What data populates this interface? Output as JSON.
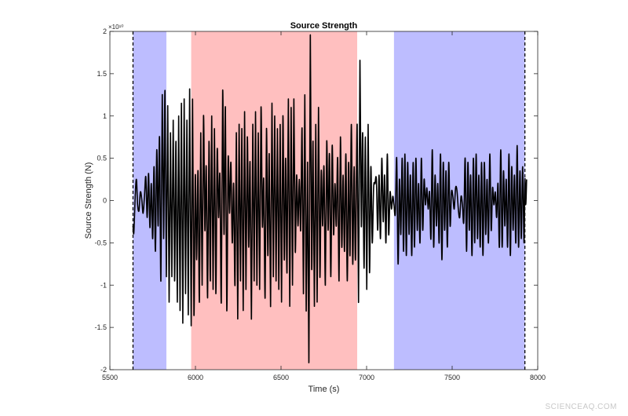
{
  "chart_data": {
    "type": "line",
    "title": "Source Strength",
    "xlabel": "Time (s)",
    "ylabel": "Source Strength (N)",
    "y_exponent_label": "×10¹⁰",
    "xlim": [
      5500,
      8000
    ],
    "ylim": [
      -2.0,
      2.0
    ],
    "y_scale_factor": 10000000000,
    "x_ticks": [
      5500,
      6000,
      6500,
      7000,
      7500,
      8000
    ],
    "x_tick_labels": [
      "5500",
      "6000",
      "6500",
      "7000",
      "7500",
      "8000"
    ],
    "y_ticks": [
      -2,
      -1.5,
      -1,
      -0.5,
      0,
      0.5,
      1,
      1.5,
      2
    ],
    "y_tick_labels": [
      "-2",
      "-1.5",
      "-1",
      "-0.5",
      "0",
      "0.5",
      "1",
      "1.5",
      "2"
    ],
    "grid": false,
    "regions": [
      {
        "x": [
          5635,
          5830
        ],
        "color": "#bdbdff"
      },
      {
        "x": [
          5975,
          6945
        ],
        "color": "#ffbfbf"
      },
      {
        "x": [
          7160,
          7925
        ],
        "color": "#bdbdff"
      }
    ],
    "vlines": [
      5635,
      7925
    ],
    "series": [
      {
        "color": "#000000",
        "points": [
          [
            5635,
            -0.3
          ],
          [
            5640,
            -0.38
          ],
          [
            5648,
            0.05
          ],
          [
            5655,
            0.25
          ],
          [
            5662,
            -0.05
          ],
          [
            5670,
            -0.12
          ],
          [
            5678,
            0.1
          ],
          [
            5686,
            0.02
          ],
          [
            5694,
            -0.15
          ],
          [
            5702,
            0.05
          ],
          [
            5710,
            0.28
          ],
          [
            5718,
            -0.2
          ],
          [
            5726,
            0.32
          ],
          [
            5734,
            -0.32
          ],
          [
            5742,
            0.2
          ],
          [
            5750,
            -0.45
          ],
          [
            5758,
            0.4
          ],
          [
            5766,
            -0.6
          ],
          [
            5774,
            0.6
          ],
          [
            5782,
            -0.3
          ],
          [
            5790,
            0.75
          ],
          [
            5798,
            -0.95
          ],
          [
            5806,
            1.25
          ],
          [
            5814,
            -0.45
          ],
          [
            5822,
            1.3
          ],
          [
            5830,
            -0.9
          ],
          [
            5838,
            1.12
          ],
          [
            5846,
            -1.2
          ],
          [
            5854,
            0.8
          ],
          [
            5862,
            -0.9
          ],
          [
            5870,
            0.95
          ],
          [
            5878,
            -0.95
          ],
          [
            5886,
            0.7
          ],
          [
            5894,
            -1.2
          ],
          [
            5902,
            1.0
          ],
          [
            5910,
            -1.3
          ],
          [
            5918,
            1.15
          ],
          [
            5926,
            -1.45
          ],
          [
            5934,
            1.2
          ],
          [
            5942,
            -1.1
          ],
          [
            5950,
            0.95
          ],
          [
            5958,
            -1.35
          ],
          [
            5966,
            1.32
          ],
          [
            5975,
            -1.48
          ],
          [
            5983,
            1.2
          ],
          [
            5991,
            -1.35
          ],
          [
            5999,
            0.3
          ],
          [
            6007,
            -0.7
          ],
          [
            6015,
            0.35
          ],
          [
            6023,
            -1.2
          ],
          [
            6031,
            0.8
          ],
          [
            6039,
            -1.0
          ],
          [
            6047,
            1.0
          ],
          [
            6055,
            -0.35
          ],
          [
            6063,
            0.4
          ],
          [
            6071,
            -1.15
          ],
          [
            6079,
            0.7
          ],
          [
            6087,
            -0.95
          ],
          [
            6095,
            1.0
          ],
          [
            6103,
            -1.05
          ],
          [
            6111,
            0.85
          ],
          [
            6119,
            -1.1
          ],
          [
            6127,
            0.6
          ],
          [
            6135,
            -0.2
          ],
          [
            6143,
            0.3
          ],
          [
            6151,
            -1.2
          ],
          [
            6159,
            1.3
          ],
          [
            6167,
            -0.4
          ],
          [
            6175,
            1.1
          ],
          [
            6183,
            -1.3
          ],
          [
            6191,
            0.5
          ],
          [
            6199,
            -0.15
          ],
          [
            6207,
            0.45
          ],
          [
            6215,
            -0.5
          ],
          [
            6223,
            0.2
          ],
          [
            6231,
            -1.0
          ],
          [
            6239,
            0.8
          ],
          [
            6247,
            -1.4
          ],
          [
            6255,
            0.9
          ],
          [
            6263,
            -0.95
          ],
          [
            6271,
            0.85
          ],
          [
            6279,
            -1.3
          ],
          [
            6287,
            1.05
          ],
          [
            6295,
            -1.05
          ],
          [
            6303,
            0.75
          ],
          [
            6311,
            -0.55
          ],
          [
            6319,
            0.45
          ],
          [
            6327,
            -1.4
          ],
          [
            6335,
            0.9
          ],
          [
            6343,
            -0.95
          ],
          [
            6351,
            1.05
          ],
          [
            6359,
            -1.0
          ],
          [
            6367,
            0.8
          ],
          [
            6375,
            -1.05
          ],
          [
            6383,
            1.1
          ],
          [
            6391,
            -0.3
          ],
          [
            6399,
            0.25
          ],
          [
            6407,
            -1.15
          ],
          [
            6415,
            0.85
          ],
          [
            6423,
            -0.65
          ],
          [
            6431,
            0.55
          ],
          [
            6439,
            -1.25
          ],
          [
            6447,
            1.15
          ],
          [
            6455,
            -0.9
          ],
          [
            6463,
            1.0
          ],
          [
            6471,
            -0.95
          ],
          [
            6479,
            0.85
          ],
          [
            6487,
            -1.05
          ],
          [
            6495,
            0.9
          ],
          [
            6503,
            -1.2
          ],
          [
            6511,
            1.0
          ],
          [
            6519,
            -0.7
          ],
          [
            6527,
            0.5
          ],
          [
            6535,
            -0.85
          ],
          [
            6543,
            1.2
          ],
          [
            6551,
            -1.25
          ],
          [
            6559,
            1.1
          ],
          [
            6567,
            -1.0
          ],
          [
            6575,
            1.2
          ],
          [
            6583,
            -0.6
          ],
          [
            6591,
            0.3
          ],
          [
            6599,
            -0.3
          ],
          [
            6607,
            0.25
          ],
          [
            6615,
            -0.35
          ],
          [
            6623,
            0.85
          ],
          [
            6631,
            -1.1
          ],
          [
            6639,
            1.25
          ],
          [
            6647,
            -1.3
          ],
          [
            6655,
            0.45
          ],
          [
            6663,
            -1.9
          ],
          [
            6671,
            1.95
          ],
          [
            6679,
            -0.8
          ],
          [
            6687,
            0.7
          ],
          [
            6695,
            -1.25
          ],
          [
            6703,
            0.9
          ],
          [
            6711,
            -1.2
          ],
          [
            6719,
            1.1
          ],
          [
            6727,
            -0.9
          ],
          [
            6735,
            0.35
          ],
          [
            6743,
            -0.3
          ],
          [
            6751,
            0.4
          ],
          [
            6759,
            -1.0
          ],
          [
            6767,
            0.7
          ],
          [
            6775,
            -0.35
          ],
          [
            6783,
            0.55
          ],
          [
            6791,
            -0.9
          ],
          [
            6799,
            0.65
          ],
          [
            6807,
            -0.4
          ],
          [
            6815,
            0.2
          ],
          [
            6823,
            -0.3
          ],
          [
            6831,
            0.5
          ],
          [
            6839,
            -0.95
          ],
          [
            6847,
            0.75
          ],
          [
            6855,
            -0.55
          ],
          [
            6863,
            0.3
          ],
          [
            6871,
            -0.6
          ],
          [
            6879,
            0.55
          ],
          [
            6887,
            -0.95
          ],
          [
            6895,
            0.45
          ],
          [
            6903,
            -0.65
          ],
          [
            6911,
            0.9
          ],
          [
            6919,
            -0.75
          ],
          [
            6927,
            0.4
          ],
          [
            6935,
            -0.7
          ],
          [
            6945,
            0.9
          ],
          [
            6953,
            -1.2
          ],
          [
            6961,
            1.65
          ],
          [
            6969,
            -0.3
          ],
          [
            6977,
            0.8
          ],
          [
            6985,
            -0.8
          ],
          [
            6993,
            0.75
          ],
          [
            7001,
            -1.05
          ],
          [
            7009,
            0.9
          ],
          [
            7017,
            -0.85
          ],
          [
            7025,
            0.4
          ],
          [
            7033,
            -0.5
          ],
          [
            7041,
            0.15
          ],
          [
            7049,
            0.2
          ],
          [
            7057,
            0.25
          ],
          [
            7065,
            -0.35
          ],
          [
            7073,
            0.3
          ],
          [
            7081,
            -0.45
          ],
          [
            7089,
            0.5
          ],
          [
            7097,
            -0.25
          ],
          [
            7105,
            0.3
          ],
          [
            7113,
            -0.5
          ],
          [
            7121,
            0.55
          ],
          [
            7129,
            -0.4
          ],
          [
            7137,
            0.1
          ],
          [
            7145,
            -0.1
          ],
          [
            7153,
            0.05
          ],
          [
            7160,
            -0.05
          ],
          [
            7168,
            -0.15
          ],
          [
            7176,
            0.5
          ],
          [
            7184,
            -0.75
          ],
          [
            7192,
            0.25
          ],
          [
            7200,
            -0.4
          ],
          [
            7208,
            0.5
          ],
          [
            7216,
            -0.6
          ],
          [
            7224,
            0.55
          ],
          [
            7232,
            -0.65
          ],
          [
            7240,
            0.45
          ],
          [
            7248,
            -0.4
          ],
          [
            7256,
            0.3
          ],
          [
            7264,
            -0.65
          ],
          [
            7272,
            0.45
          ],
          [
            7280,
            -0.55
          ],
          [
            7288,
            0.5
          ],
          [
            7296,
            -0.35
          ],
          [
            7304,
            0.2
          ],
          [
            7312,
            -0.5
          ],
          [
            7320,
            0.5
          ],
          [
            7328,
            -0.35
          ],
          [
            7336,
            0.25
          ],
          [
            7344,
            -0.05
          ],
          [
            7352,
            0.15
          ],
          [
            7360,
            -0.1
          ],
          [
            7368,
            0.1
          ],
          [
            7376,
            -0.45
          ],
          [
            7384,
            0.6
          ],
          [
            7392,
            -0.55
          ],
          [
            7400,
            0.3
          ],
          [
            7408,
            -0.3
          ],
          [
            7416,
            0.2
          ],
          [
            7424,
            -0.5
          ],
          [
            7432,
            0.55
          ],
          [
            7440,
            -0.7
          ],
          [
            7448,
            0.45
          ],
          [
            7456,
            -0.35
          ],
          [
            7464,
            0.35
          ],
          [
            7472,
            -0.55
          ],
          [
            7480,
            0.45
          ],
          [
            7488,
            -0.3
          ],
          [
            7496,
            0.1
          ],
          [
            7504,
            0.05
          ],
          [
            7512,
            -0.1
          ],
          [
            7520,
            0.15
          ],
          [
            7528,
            0.12
          ],
          [
            7536,
            -0.1
          ],
          [
            7544,
            -0.2
          ],
          [
            7552,
            0.05
          ],
          [
            7560,
            -0.05
          ],
          [
            7568,
            -0.25
          ],
          [
            7576,
            0.5
          ],
          [
            7584,
            -0.6
          ],
          [
            7592,
            0.45
          ],
          [
            7600,
            -0.35
          ],
          [
            7608,
            0.3
          ],
          [
            7616,
            -0.65
          ],
          [
            7624,
            0.5
          ],
          [
            7632,
            -0.5
          ],
          [
            7640,
            0.55
          ],
          [
            7648,
            -0.45
          ],
          [
            7656,
            0.3
          ],
          [
            7664,
            -0.55
          ],
          [
            7672,
            0.45
          ],
          [
            7680,
            -0.65
          ],
          [
            7688,
            0.45
          ],
          [
            7696,
            -0.4
          ],
          [
            7704,
            0.25
          ],
          [
            7712,
            -0.5
          ],
          [
            7720,
            0.55
          ],
          [
            7728,
            -0.35
          ],
          [
            7736,
            0.15
          ],
          [
            7744,
            -0.05
          ],
          [
            7752,
            0.1
          ],
          [
            7760,
            -0.2
          ],
          [
            7768,
            0.2
          ],
          [
            7776,
            -0.55
          ],
          [
            7784,
            0.6
          ],
          [
            7792,
            -0.55
          ],
          [
            7800,
            0.35
          ],
          [
            7808,
            -0.3
          ],
          [
            7816,
            0.25
          ],
          [
            7824,
            -0.55
          ],
          [
            7832,
            0.55
          ],
          [
            7840,
            -0.65
          ],
          [
            7848,
            0.4
          ],
          [
            7856,
            -0.35
          ],
          [
            7864,
            0.3
          ],
          [
            7872,
            -0.5
          ],
          [
            7880,
            0.65
          ],
          [
            7888,
            -0.55
          ],
          [
            7896,
            0.35
          ],
          [
            7904,
            -0.45
          ],
          [
            7912,
            0.4
          ],
          [
            7920,
            -0.5
          ],
          [
            7925,
            0.25
          ],
          [
            7930,
            -0.05
          ],
          [
            7935,
            0.25
          ]
        ]
      }
    ]
  },
  "watermark": "SCIENCEAQ.COM"
}
